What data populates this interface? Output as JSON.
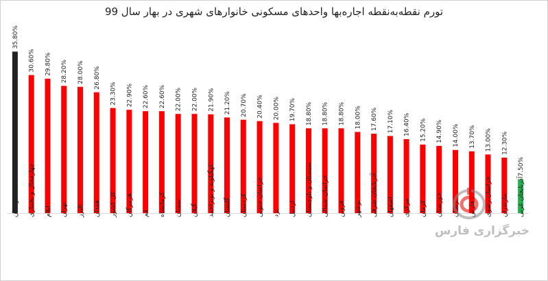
{
  "chart_data": {
    "type": "bar",
    "title": "تورم نقطه‌به‌نقطه اجاره‌بها واحدهای مسکونی خانوارهای شهری در بهار سال 99",
    "categories": [
      "لرستان",
      "چهارمحال و بختیاری",
      "ایلام",
      "تهران",
      "البرز",
      "همدان",
      "کل کشور",
      "هرمزگان",
      "قم",
      "کرمانشاه",
      "سمنان",
      "گیلان",
      "کهگیلویه و بویراحمد",
      "گلستان",
      "کردستان",
      "خراسان جنوبی",
      "یزد",
      "اردبیل",
      "سیستان و بلوچستان",
      "خراسان شمالی",
      "قزوین",
      "بوشهر",
      "آذربایجان شرقی",
      "اصفهان",
      "مرکزی",
      "کرمان",
      "خوزستان",
      "زنجان",
      "فارس",
      "خراسان رضوی",
      "مازندران",
      "آذربایجان غربی"
    ],
    "values": [
      35.8,
      30.6,
      29.8,
      28.2,
      28.0,
      26.8,
      23.3,
      22.9,
      22.6,
      22.6,
      22.0,
      22.0,
      21.9,
      21.2,
      20.7,
      20.4,
      20.0,
      19.7,
      18.8,
      18.8,
      18.8,
      18.0,
      17.6,
      17.1,
      16.4,
      15.2,
      14.9,
      14.0,
      13.7,
      13.0,
      12.3,
      7.5
    ],
    "value_labels": [
      "35.80%",
      "30.60%",
      "29.80%",
      "28.20%",
      "28.00%",
      "26.80%",
      "23.30%",
      "22.90%",
      "22.60%",
      "22.60%",
      "22.00%",
      "22.00%",
      "21.90%",
      "21.20%",
      "20.70%",
      "20.40%",
      "20.00%",
      "19.70%",
      "18.80%",
      "18.80%",
      "18.80%",
      "18.00%",
      "17.60%",
      "17.10%",
      "16.40%",
      "15.20%",
      "14.90%",
      "14.00%",
      "13.70%",
      "13.00%",
      "12.30%",
      "7.50%"
    ],
    "bar_colors": [
      "#222222",
      "#ff0000",
      "#ff0000",
      "#ff0000",
      "#ff0000",
      "#ff0000",
      "#ff0000",
      "#ff0000",
      "#ff0000",
      "#ff0000",
      "#ff0000",
      "#ff0000",
      "#ff0000",
      "#ff0000",
      "#ff0000",
      "#ff0000",
      "#ff0000",
      "#ff0000",
      "#ff0000",
      "#ff0000",
      "#ff0000",
      "#ff0000",
      "#ff0000",
      "#ff0000",
      "#ff0000",
      "#ff0000",
      "#ff0000",
      "#ff0000",
      "#ff0000",
      "#ff0000",
      "#ff0000",
      "#22b14c"
    ],
    "ylim": [
      0,
      40
    ],
    "grid": false,
    "legend": "none"
  },
  "watermark": {
    "text": "خبرگزاری فارس",
    "color": "#8a8a8a",
    "accent": "#e00000"
  },
  "colors": {
    "gridline": "#d9d9d9",
    "label_text": "#222222"
  }
}
